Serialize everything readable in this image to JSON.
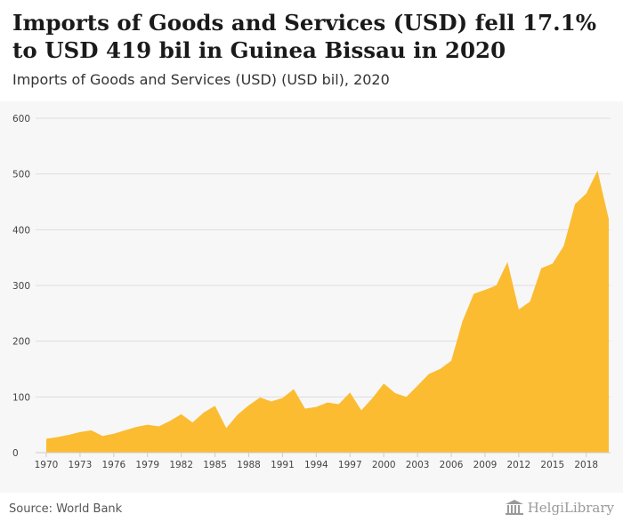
{
  "header": {
    "title": "Imports of Goods and Services (USD) fell 17.1% to USD 419 bil in Guinea Bissau in 2020",
    "subtitle": "Imports of Goods and Services (USD) (USD bil), 2020"
  },
  "footer": {
    "source": "Source: World Bank",
    "logo_text": "HelgiLibrary"
  },
  "colors": {
    "area_fill": "#fbbc31",
    "grid": "#dddddd",
    "axis_text": "#444444"
  },
  "chart_data": {
    "type": "area",
    "title": "Imports of Goods and Services (USD) fell 17.1% to USD 419 bil in Guinea Bissau in 2020",
    "subtitle": "Imports of Goods and Services (USD) (USD bil), 2020",
    "x": [
      1970,
      1971,
      1972,
      1973,
      1974,
      1975,
      1976,
      1977,
      1978,
      1979,
      1980,
      1981,
      1982,
      1983,
      1984,
      1985,
      1986,
      1987,
      1988,
      1989,
      1990,
      1991,
      1992,
      1993,
      1994,
      1995,
      1996,
      1997,
      1998,
      1999,
      2000,
      2001,
      2002,
      2003,
      2004,
      2005,
      2006,
      2007,
      2008,
      2009,
      2010,
      2011,
      2012,
      2013,
      2014,
      2015,
      2016,
      2017,
      2018,
      2019,
      2020
    ],
    "values": [
      25,
      28,
      32,
      37,
      40,
      30,
      34,
      40,
      46,
      50,
      47,
      57,
      69,
      54,
      72,
      84,
      44,
      68,
      85,
      99,
      92,
      98,
      114,
      79,
      82,
      90,
      87,
      108,
      76,
      98,
      124,
      107,
      100,
      120,
      141,
      150,
      165,
      236,
      285,
      292,
      300,
      342,
      257,
      271,
      331,
      339,
      371,
      446,
      465,
      506,
      419
    ],
    "xticks": [
      "1970",
      "1973",
      "1976",
      "1979",
      "1982",
      "1985",
      "1988",
      "1991",
      "1994",
      "1997",
      "2000",
      "2003",
      "2006",
      "2009",
      "2012",
      "2015",
      "2018"
    ],
    "yticks": [
      "0",
      "100",
      "200",
      "300",
      "400",
      "500",
      "600"
    ],
    "ylim": [
      0,
      600
    ],
    "xlim": [
      1970,
      2020
    ],
    "grid": true,
    "legend": "none"
  }
}
